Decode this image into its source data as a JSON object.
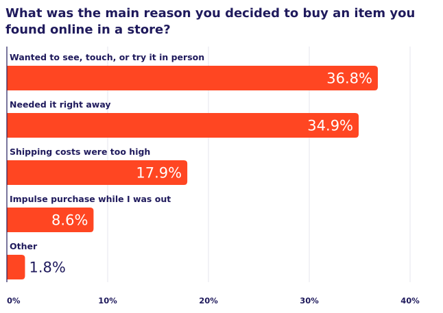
{
  "chart_data": {
    "type": "bar",
    "orientation": "horizontal",
    "title": "What was the main reason you decided to buy an item you found online in a store?",
    "categories": [
      "Wanted to see, touch, or try it in person",
      "Needed it right away",
      "Shipping costs were too high",
      "Impulse purchase while I was out",
      "Other"
    ],
    "values": [
      36.8,
      34.9,
      17.9,
      8.6,
      1.8
    ],
    "value_labels": [
      "36.8%",
      "34.9%",
      "17.9%",
      "8.6%",
      "1.8%"
    ],
    "xlim": [
      0,
      40
    ],
    "x_ticks": [
      0,
      10,
      20,
      30,
      40
    ],
    "x_tick_labels": [
      "0%",
      "10%",
      "20%",
      "30%",
      "40%"
    ],
    "grid": "vertical",
    "legend": "none",
    "colors": {
      "bar": "#ff4622",
      "text": "#1f1a5c",
      "grid": "#e6e6ee",
      "axis": "#1f1a5c",
      "value_inside": "#ffffff",
      "value_outside": "#1f1a5c"
    }
  }
}
